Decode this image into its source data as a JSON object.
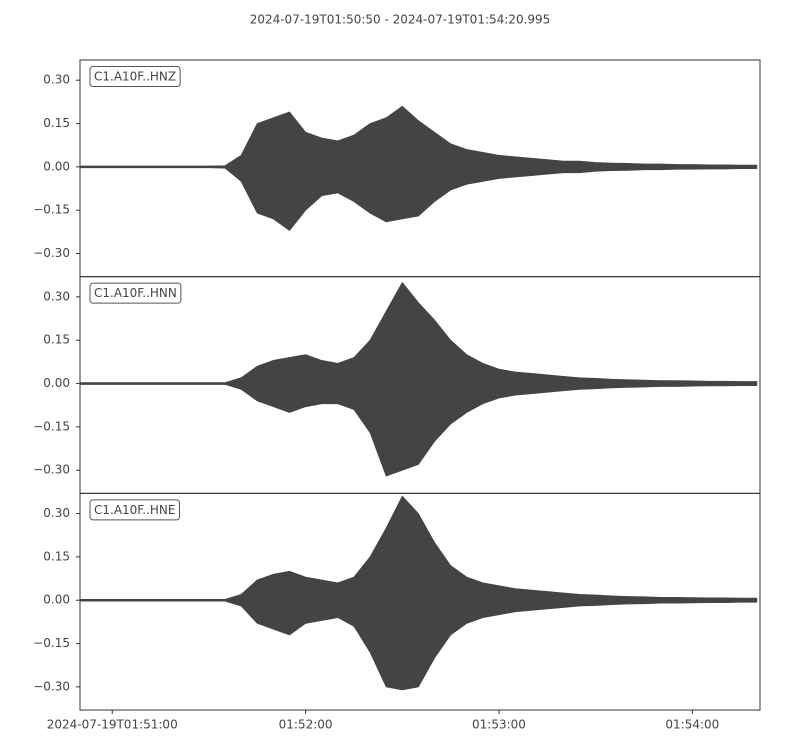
{
  "chart_data": {
    "type": "band",
    "title": "2024-07-19T01:50:50  -  2024-07-19T01:54:20.995",
    "color": "#444444",
    "x": [
      0,
      5,
      10,
      15,
      20,
      25,
      30,
      35,
      40,
      45,
      50,
      55,
      60,
      65,
      70,
      75,
      80,
      85,
      90,
      95,
      100,
      105,
      110,
      115,
      120,
      125,
      130,
      135,
      140,
      145,
      150,
      155,
      160,
      165,
      170,
      175,
      180,
      185,
      190,
      195,
      200,
      205,
      210
    ],
    "xlim": [
      0,
      210.995
    ],
    "xticks": [
      {
        "value": 10,
        "label": "2024-07-19T01:51:00"
      },
      {
        "value": 70,
        "label": "01:52:00"
      },
      {
        "value": 130,
        "label": "01:53:00"
      },
      {
        "value": 190,
        "label": "01:54:00"
      }
    ],
    "ylim": [
      -0.38,
      0.37
    ],
    "yticks": [
      {
        "value": 0.3,
        "label": "0.30"
      },
      0.15,
      {
        "value": 0,
        "label": "0.00"
      },
      {
        "value": -0.15,
        "label": "−0.15"
      },
      {
        "value": -0.3,
        "label": "−0.30"
      }
    ],
    "panels": [
      {
        "label": "C1.A10F..HNZ",
        "upper": [
          0.003,
          0.003,
          0.003,
          0.003,
          0.003,
          0.003,
          0.003,
          0.003,
          0.003,
          0.004,
          0.04,
          0.15,
          0.17,
          0.19,
          0.12,
          0.1,
          0.09,
          0.11,
          0.15,
          0.17,
          0.21,
          0.16,
          0.12,
          0.08,
          0.06,
          0.05,
          0.04,
          0.035,
          0.03,
          0.025,
          0.02,
          0.02,
          0.015,
          0.013,
          0.012,
          0.01,
          0.01,
          0.008,
          0.008,
          0.007,
          0.007,
          0.006,
          0.006
        ],
        "lower": [
          -0.003,
          -0.003,
          -0.003,
          -0.003,
          -0.003,
          -0.003,
          -0.003,
          -0.003,
          -0.003,
          -0.004,
          -0.05,
          -0.16,
          -0.18,
          -0.22,
          -0.15,
          -0.1,
          -0.09,
          -0.12,
          -0.16,
          -0.19,
          -0.18,
          -0.17,
          -0.12,
          -0.08,
          -0.06,
          -0.05,
          -0.04,
          -0.035,
          -0.03,
          -0.025,
          -0.02,
          -0.02,
          -0.015,
          -0.013,
          -0.012,
          -0.01,
          -0.01,
          -0.008,
          -0.008,
          -0.007,
          -0.007,
          -0.006,
          -0.006
        ]
      },
      {
        "label": "C1.A10F..HNN",
        "upper": [
          0.003,
          0.003,
          0.003,
          0.003,
          0.003,
          0.003,
          0.003,
          0.003,
          0.003,
          0.003,
          0.02,
          0.06,
          0.08,
          0.09,
          0.1,
          0.08,
          0.07,
          0.09,
          0.15,
          0.25,
          0.35,
          0.28,
          0.22,
          0.15,
          0.1,
          0.07,
          0.05,
          0.04,
          0.035,
          0.03,
          0.025,
          0.02,
          0.018,
          0.015,
          0.013,
          0.012,
          0.01,
          0.01,
          0.009,
          0.008,
          0.008,
          0.007,
          0.007
        ],
        "lower": [
          -0.003,
          -0.003,
          -0.003,
          -0.003,
          -0.003,
          -0.003,
          -0.003,
          -0.003,
          -0.003,
          -0.003,
          -0.02,
          -0.06,
          -0.08,
          -0.1,
          -0.08,
          -0.07,
          -0.07,
          -0.09,
          -0.17,
          -0.32,
          -0.3,
          -0.28,
          -0.2,
          -0.14,
          -0.1,
          -0.07,
          -0.05,
          -0.04,
          -0.035,
          -0.03,
          -0.025,
          -0.02,
          -0.018,
          -0.015,
          -0.013,
          -0.012,
          -0.01,
          -0.01,
          -0.009,
          -0.008,
          -0.008,
          -0.007,
          -0.007
        ]
      },
      {
        "label": "C1.A10F..HNE",
        "upper": [
          0.003,
          0.003,
          0.003,
          0.003,
          0.003,
          0.003,
          0.003,
          0.003,
          0.003,
          0.003,
          0.02,
          0.07,
          0.09,
          0.1,
          0.08,
          0.07,
          0.06,
          0.08,
          0.15,
          0.25,
          0.36,
          0.3,
          0.2,
          0.12,
          0.08,
          0.06,
          0.05,
          0.04,
          0.035,
          0.03,
          0.025,
          0.02,
          0.018,
          0.015,
          0.013,
          0.012,
          0.01,
          0.01,
          0.009,
          0.008,
          0.008,
          0.007,
          0.007
        ],
        "lower": [
          -0.003,
          -0.003,
          -0.003,
          -0.003,
          -0.003,
          -0.003,
          -0.003,
          -0.003,
          -0.003,
          -0.003,
          -0.02,
          -0.08,
          -0.1,
          -0.12,
          -0.08,
          -0.07,
          -0.06,
          -0.09,
          -0.18,
          -0.3,
          -0.31,
          -0.3,
          -0.2,
          -0.12,
          -0.08,
          -0.06,
          -0.05,
          -0.04,
          -0.035,
          -0.03,
          -0.025,
          -0.02,
          -0.018,
          -0.015,
          -0.013,
          -0.012,
          -0.01,
          -0.01,
          -0.009,
          -0.008,
          -0.008,
          -0.007,
          -0.007
        ]
      }
    ]
  }
}
